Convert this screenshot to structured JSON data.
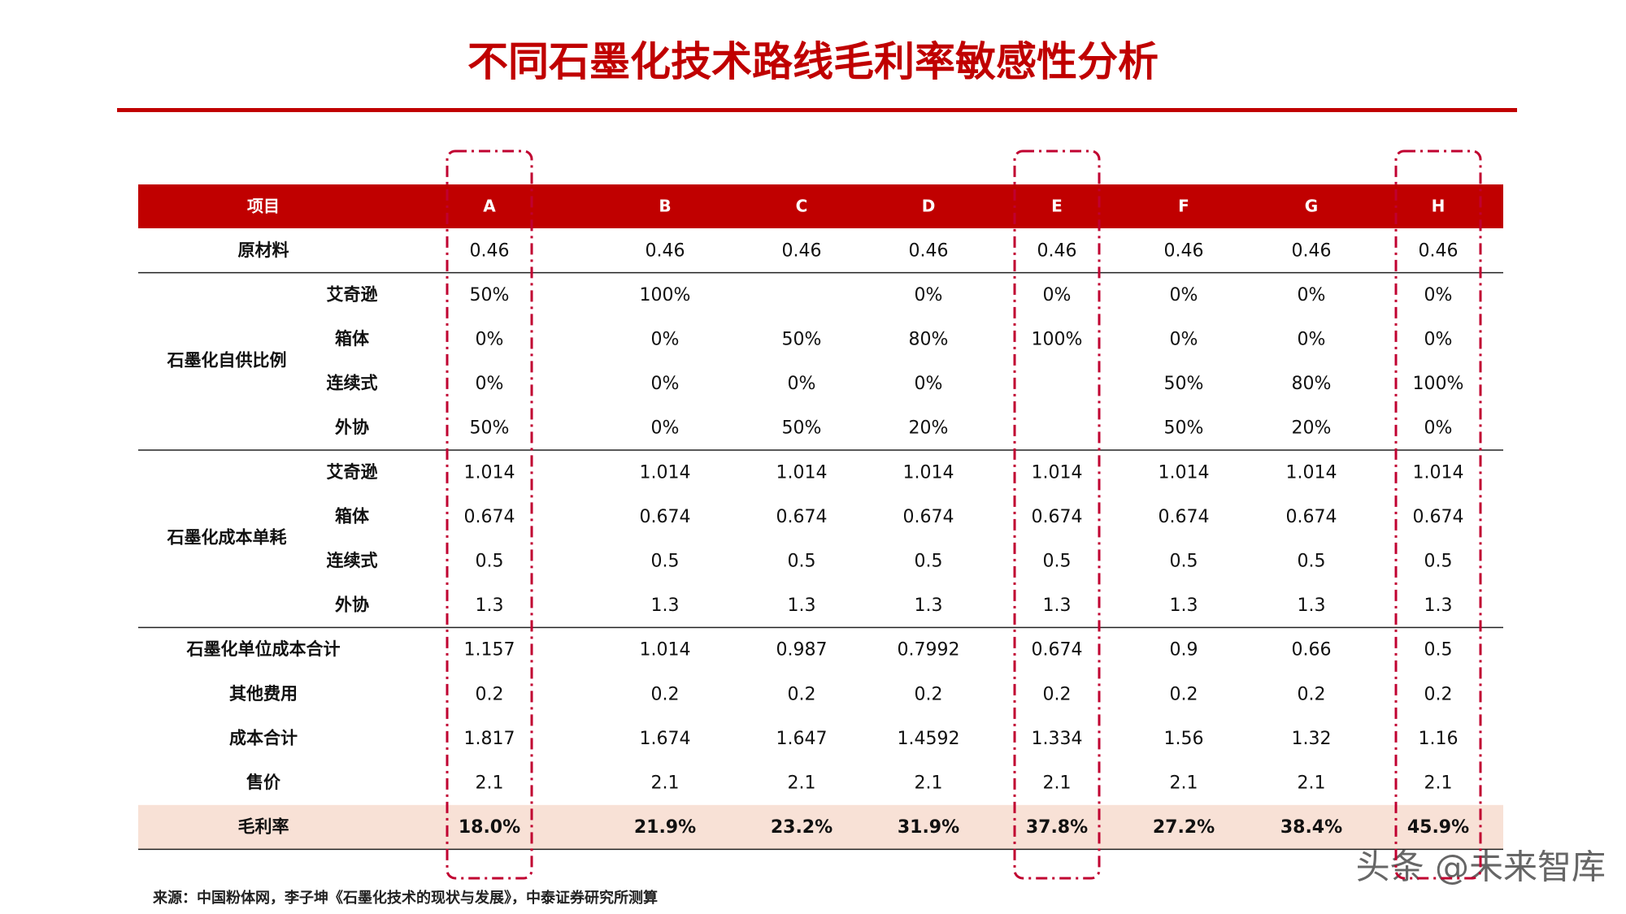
{
  "title": "不同石墨化技术路线毛利率敏感性分析",
  "table": {
    "header": [
      "项目",
      "A",
      "B",
      "C",
      "D",
      "E",
      "F",
      "G",
      "H"
    ],
    "sections": [
      {
        "rows": [
          {
            "label": "原材料",
            "values": [
              "0.46",
              "0.46",
              "0.46",
              "0.46",
              "0.46",
              "0.46",
              "0.46",
              "0.46"
            ]
          }
        ]
      },
      {
        "group": "石墨化自供比例",
        "rows": [
          {
            "label": "艾奇逊",
            "values": [
              "50%",
              "100%",
              null,
              "0%",
              "0%",
              "0%",
              "0%",
              "0%"
            ]
          },
          {
            "label": "箱体",
            "values": [
              "0%",
              "0%",
              "50%",
              "80%",
              "100%",
              "0%",
              "0%",
              "0%"
            ]
          },
          {
            "label": "连续式",
            "values": [
              "0%",
              "0%",
              "0%",
              "0%",
              null,
              "50%",
              "80%",
              "100%"
            ]
          },
          {
            "label": "外协",
            "values": [
              "50%",
              "0%",
              "50%",
              "20%",
              null,
              "50%",
              "20%",
              "0%"
            ]
          }
        ]
      },
      {
        "group": "石墨化成本单耗",
        "rows": [
          {
            "label": "艾奇逊",
            "values": [
              "1.014",
              "1.014",
              "1.014",
              "1.014",
              "1.014",
              "1.014",
              "1.014",
              "1.014"
            ]
          },
          {
            "label": "箱体",
            "values": [
              "0.674",
              "0.674",
              "0.674",
              "0.674",
              "0.674",
              "0.674",
              "0.674",
              "0.674"
            ]
          },
          {
            "label": "连续式",
            "values": [
              "0.5",
              "0.5",
              "0.5",
              "0.5",
              "0.5",
              "0.5",
              "0.5",
              "0.5"
            ]
          },
          {
            "label": "外协",
            "values": [
              "1.3",
              "1.3",
              "1.3",
              "1.3",
              "1.3",
              "1.3",
              "1.3",
              "1.3"
            ]
          }
        ]
      },
      {
        "rows": [
          {
            "label": "石墨化单位成本合计",
            "values": [
              "1.157",
              "1.014",
              "0.987",
              "0.7992",
              "0.674",
              "0.9",
              "0.66",
              "0.5"
            ]
          },
          {
            "label": "其他费用",
            "values": [
              "0.2",
              "0.2",
              "0.2",
              "0.2",
              "0.2",
              "0.2",
              "0.2",
              "0.2"
            ]
          },
          {
            "label": "成本合计",
            "values": [
              "1.817",
              "1.674",
              "1.647",
              "1.4592",
              "1.334",
              "1.56",
              "1.32",
              "1.16"
            ]
          },
          {
            "label": "售价",
            "values": [
              "2.1",
              "2.1",
              "2.1",
              "2.1",
              "2.1",
              "2.1",
              "2.1",
              "2.1"
            ]
          }
        ]
      },
      {
        "rows": [
          {
            "label": "毛利率",
            "values": [
              "18.0%",
              "21.9%",
              "23.2%",
              "31.9%",
              "37.8%",
              "27.2%",
              "38.4%",
              "45.9%"
            ]
          }
        ]
      }
    ]
  },
  "source": "来源：中国粉体网，李子坤《石墨化技术的现状与发展》，中泰证券研究所测算",
  "watermark": "头条 @未来智库"
}
